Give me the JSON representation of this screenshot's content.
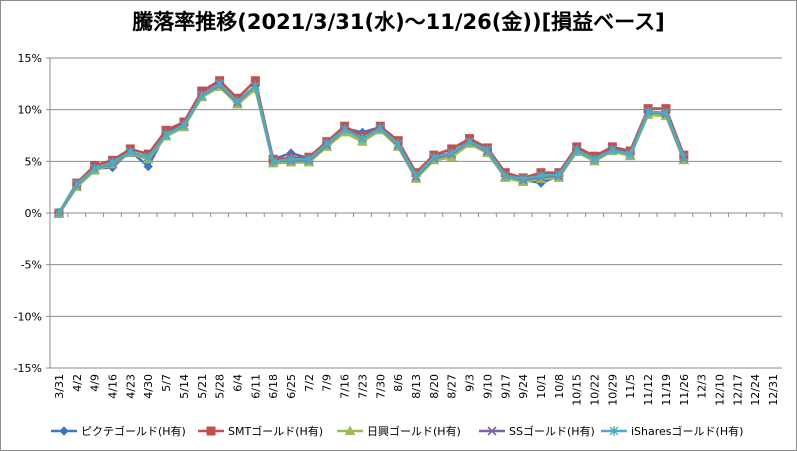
{
  "chart_data": {
    "type": "line",
    "title": "騰落率推移(2021/3/31(水)〜11/26(金))[損益ベース]",
    "xlabel": "",
    "ylabel": "",
    "ylim": [
      -15,
      15
    ],
    "yticks": [
      15,
      10,
      5,
      0,
      -5,
      -10,
      -15
    ],
    "ytick_labels": [
      "15%",
      "10%",
      "5%",
      "0%",
      "-5%",
      "-10%",
      "-15%"
    ],
    "grid": "horizontal",
    "legend_position": "bottom",
    "categories": [
      "3/31",
      "4/2",
      "4/9",
      "4/16",
      "4/23",
      "4/30",
      "5/7",
      "5/14",
      "5/21",
      "5/28",
      "6/4",
      "6/11",
      "6/18",
      "6/25",
      "7/2",
      "7/9",
      "7/16",
      "7/23",
      "7/30",
      "8/6",
      "8/13",
      "8/20",
      "8/27",
      "9/3",
      "9/10",
      "9/17",
      "9/24",
      "10/1",
      "10/8",
      "10/15",
      "10/22",
      "10/29",
      "11/5",
      "11/12",
      "11/19",
      "11/26",
      "12/3",
      "12/10",
      "12/17",
      "12/24",
      "12/31"
    ],
    "series": [
      {
        "name": "ピクテゴールド(H有)",
        "color": "#4472c4",
        "marker": "diamond",
        "values": [
          0,
          2.7,
          4.3,
          4.4,
          6,
          4.5,
          7.8,
          8.5,
          11.5,
          12.5,
          10.7,
          12.3,
          5.2,
          5.8,
          5.3,
          6.8,
          8.2,
          7.8,
          8.3,
          6.8,
          3.6,
          5.5,
          5.8,
          7,
          6.2,
          3.8,
          3.2,
          2.9,
          3.6,
          6.2,
          5.1,
          6.2,
          5.8,
          9.7,
          9.7,
          5.3,
          null,
          null,
          null,
          null,
          null
        ]
      },
      {
        "name": "SMTゴールド(H有)",
        "color": "#c0504d",
        "marker": "square",
        "values": [
          0,
          2.9,
          4.6,
          5.1,
          6.2,
          5.7,
          8,
          8.8,
          11.8,
          12.8,
          11.1,
          12.8,
          5.2,
          5.3,
          5.4,
          6.9,
          8.4,
          7.4,
          8.4,
          7,
          3.9,
          5.6,
          6.2,
          7.2,
          6.3,
          3.9,
          3.4,
          3.9,
          3.9,
          6.4,
          5.5,
          6.4,
          6,
          10.1,
          10.1,
          5.6,
          null,
          null,
          null,
          null,
          null
        ]
      },
      {
        "name": "日興ゴールド(H有)",
        "color": "#9bbb59",
        "marker": "triangle",
        "values": [
          -0.1,
          2.5,
          4.1,
          4.7,
          5.8,
          5.2,
          7.4,
          8.3,
          11.2,
          12.2,
          10.5,
          12,
          4.8,
          4.9,
          4.9,
          6.4,
          7.8,
          6.9,
          8,
          6.4,
          3.3,
          5.1,
          5.4,
          6.7,
          5.8,
          3.4,
          3,
          3.3,
          3.4,
          5.9,
          5,
          6,
          5.5,
          9.5,
          9.4,
          5.1,
          null,
          null,
          null,
          null,
          null
        ]
      },
      {
        "name": "SSゴールド(H有)",
        "color": "#8064a2",
        "marker": "x",
        "values": [
          0,
          2.7,
          4.3,
          4.8,
          5.9,
          5.4,
          7.6,
          8.5,
          11.4,
          12.4,
          10.7,
          12.3,
          5,
          5.1,
          5.1,
          6.6,
          8.1,
          7.2,
          8.2,
          6.6,
          3.5,
          5.3,
          5.7,
          6.9,
          6,
          3.6,
          3.2,
          3.5,
          3.6,
          6.1,
          5.2,
          6.1,
          5.7,
          9.8,
          9.6,
          5.3,
          null,
          null,
          null,
          null,
          null
        ]
      },
      {
        "name": "iSharesゴールド(H有)",
        "color": "#4bacc6",
        "marker": "star",
        "values": [
          0,
          2.8,
          4.3,
          4.9,
          5.9,
          5.4,
          7.6,
          8.5,
          11.4,
          12.5,
          10.8,
          12.3,
          5,
          5.2,
          5.2,
          6.7,
          8.1,
          7.2,
          8.2,
          6.7,
          3.6,
          5.4,
          5.8,
          6.9,
          6.1,
          3.6,
          3.3,
          3.6,
          3.7,
          6.1,
          5.2,
          6.1,
          5.7,
          9.8,
          9.7,
          5.4,
          null,
          null,
          null,
          null,
          null
        ]
      }
    ]
  }
}
